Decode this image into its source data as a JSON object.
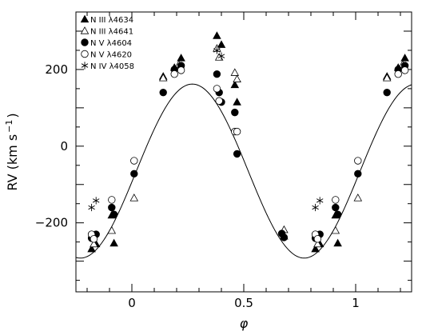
{
  "chart_data": {
    "type": "scatter",
    "xlabel": "φ",
    "ylabel": "RV (km s",
    "ylabel_sup": "−1",
    "ylabel_close": ")",
    "xlim": [
      -0.25,
      1.25
    ],
    "ylim": [
      -380,
      350
    ],
    "grid": false,
    "legend_position": "top-left",
    "x_ticks": [
      {
        "v": 0,
        "label": "0"
      },
      {
        "v": 0.5,
        "label": "0.5"
      },
      {
        "v": 1,
        "label": "1"
      }
    ],
    "y_ticks": [
      {
        "v": -200,
        "label": "−200"
      },
      {
        "v": 0,
        "label": "0"
      },
      {
        "v": 200,
        "label": "200"
      }
    ],
    "curve": {
      "amplitude": 227,
      "offset": -65,
      "phase_of_max": 0.27
    },
    "series": [
      {
        "name": "N III λ4634",
        "marker": "triangle-filled",
        "points": [
          [
            -0.18,
            -268
          ],
          [
            -0.16,
            -255
          ],
          [
            -0.09,
            -180
          ],
          [
            -0.08,
            -253
          ],
          [
            0.14,
            182
          ],
          [
            0.19,
            205
          ],
          [
            0.22,
            230
          ],
          [
            0.38,
            288
          ],
          [
            0.4,
            265
          ],
          [
            0.46,
            160
          ],
          [
            0.47,
            115
          ],
          [
            0.68,
            -235
          ],
          [
            0.82,
            -268
          ],
          [
            0.84,
            -255
          ],
          [
            0.91,
            -180
          ],
          [
            0.92,
            -253
          ],
          [
            1.14,
            182
          ],
          [
            1.19,
            205
          ],
          [
            1.22,
            230
          ]
        ]
      },
      {
        "name": "N III λ4641",
        "marker": "triangle-open",
        "points": [
          [
            -0.17,
            -255
          ],
          [
            -0.09,
            -220
          ],
          [
            0.01,
            -135
          ],
          [
            0.14,
            178
          ],
          [
            0.21,
            213
          ],
          [
            0.38,
            255
          ],
          [
            0.39,
            232
          ],
          [
            0.46,
            192
          ],
          [
            0.47,
            175
          ],
          [
            0.68,
            -218
          ],
          [
            0.83,
            -255
          ],
          [
            0.91,
            -220
          ],
          [
            1.01,
            -135
          ],
          [
            1.14,
            178
          ],
          [
            1.21,
            213
          ]
        ]
      },
      {
        "name": "N V λ4604",
        "marker": "circle-filled",
        "points": [
          [
            -0.18,
            -240
          ],
          [
            -0.16,
            -230
          ],
          [
            -0.09,
            -160
          ],
          [
            -0.08,
            -178
          ],
          [
            0.01,
            -72
          ],
          [
            0.14,
            140
          ],
          [
            0.19,
            200
          ],
          [
            0.22,
            210
          ],
          [
            0.38,
            188
          ],
          [
            0.39,
            140
          ],
          [
            0.4,
            115
          ],
          [
            0.46,
            88
          ],
          [
            0.47,
            -20
          ],
          [
            0.67,
            -228
          ],
          [
            0.68,
            -238
          ],
          [
            0.82,
            -240
          ],
          [
            0.84,
            -230
          ],
          [
            0.91,
            -160
          ],
          [
            0.92,
            -178
          ],
          [
            1.01,
            -72
          ],
          [
            1.14,
            140
          ],
          [
            1.19,
            200
          ],
          [
            1.22,
            210
          ]
        ]
      },
      {
        "name": "N V λ4620",
        "marker": "circle-open",
        "points": [
          [
            -0.18,
            -230
          ],
          [
            -0.17,
            -242
          ],
          [
            -0.09,
            -140
          ],
          [
            0.01,
            -38
          ],
          [
            0.19,
            188
          ],
          [
            0.22,
            198
          ],
          [
            0.38,
            150
          ],
          [
            0.39,
            118
          ],
          [
            0.46,
            38
          ],
          [
            0.47,
            38
          ],
          [
            0.82,
            -230
          ],
          [
            0.83,
            -242
          ],
          [
            0.91,
            -140
          ],
          [
            1.01,
            -38
          ],
          [
            1.19,
            188
          ],
          [
            1.22,
            198
          ]
        ]
      },
      {
        "name": "N IV λ4058",
        "marker": "asterisk",
        "points": [
          [
            -0.18,
            -160
          ],
          [
            -0.16,
            -142
          ],
          [
            0.38,
            250
          ],
          [
            0.4,
            235
          ],
          [
            0.82,
            -160
          ],
          [
            0.84,
            -142
          ]
        ]
      }
    ]
  }
}
